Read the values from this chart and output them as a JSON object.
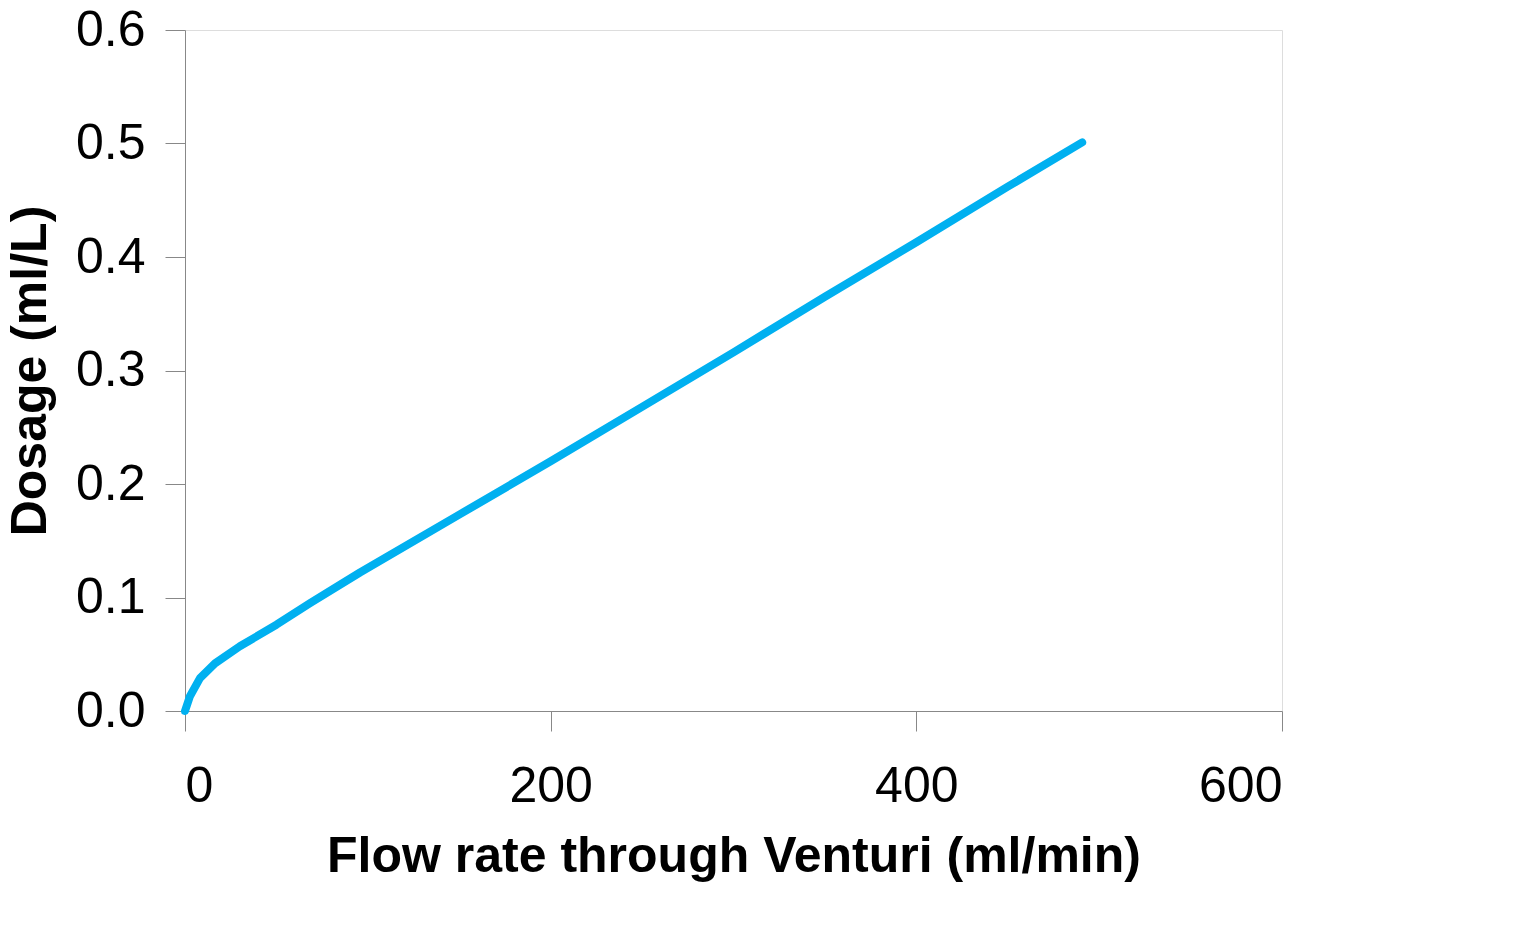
{
  "chart_data": {
    "type": "line",
    "xlabel": "Flow rate through Venturi (ml/min)",
    "ylabel": "Dosage (ml/L)",
    "x": [
      0,
      2.7,
      8.2,
      16.4,
      30,
      50,
      68.4,
      95.7,
      150,
      200,
      250,
      300,
      350,
      400,
      450,
      490.7
    ],
    "series": [
      {
        "color": "#00b0f0",
        "values": [
          0,
          0.013,
          0.029,
          0.042,
          0.057,
          0.076,
          0.095,
          0.122,
          0.173,
          0.22,
          0.268,
          0.316,
          0.365,
          0.413,
          0.462,
          0.501
        ]
      }
    ],
    "xlim": [
      0,
      600
    ],
    "xticks": [
      0,
      200,
      400,
      600
    ],
    "ylim": [
      0,
      0.6
    ],
    "yticks": [
      {
        "value": 0,
        "label": "0.0"
      },
      0.1,
      0.2,
      0.3,
      0.4,
      0.5,
      0.6
    ],
    "grid": false,
    "legend": false,
    "marker": "none",
    "line_style": "solid"
  }
}
